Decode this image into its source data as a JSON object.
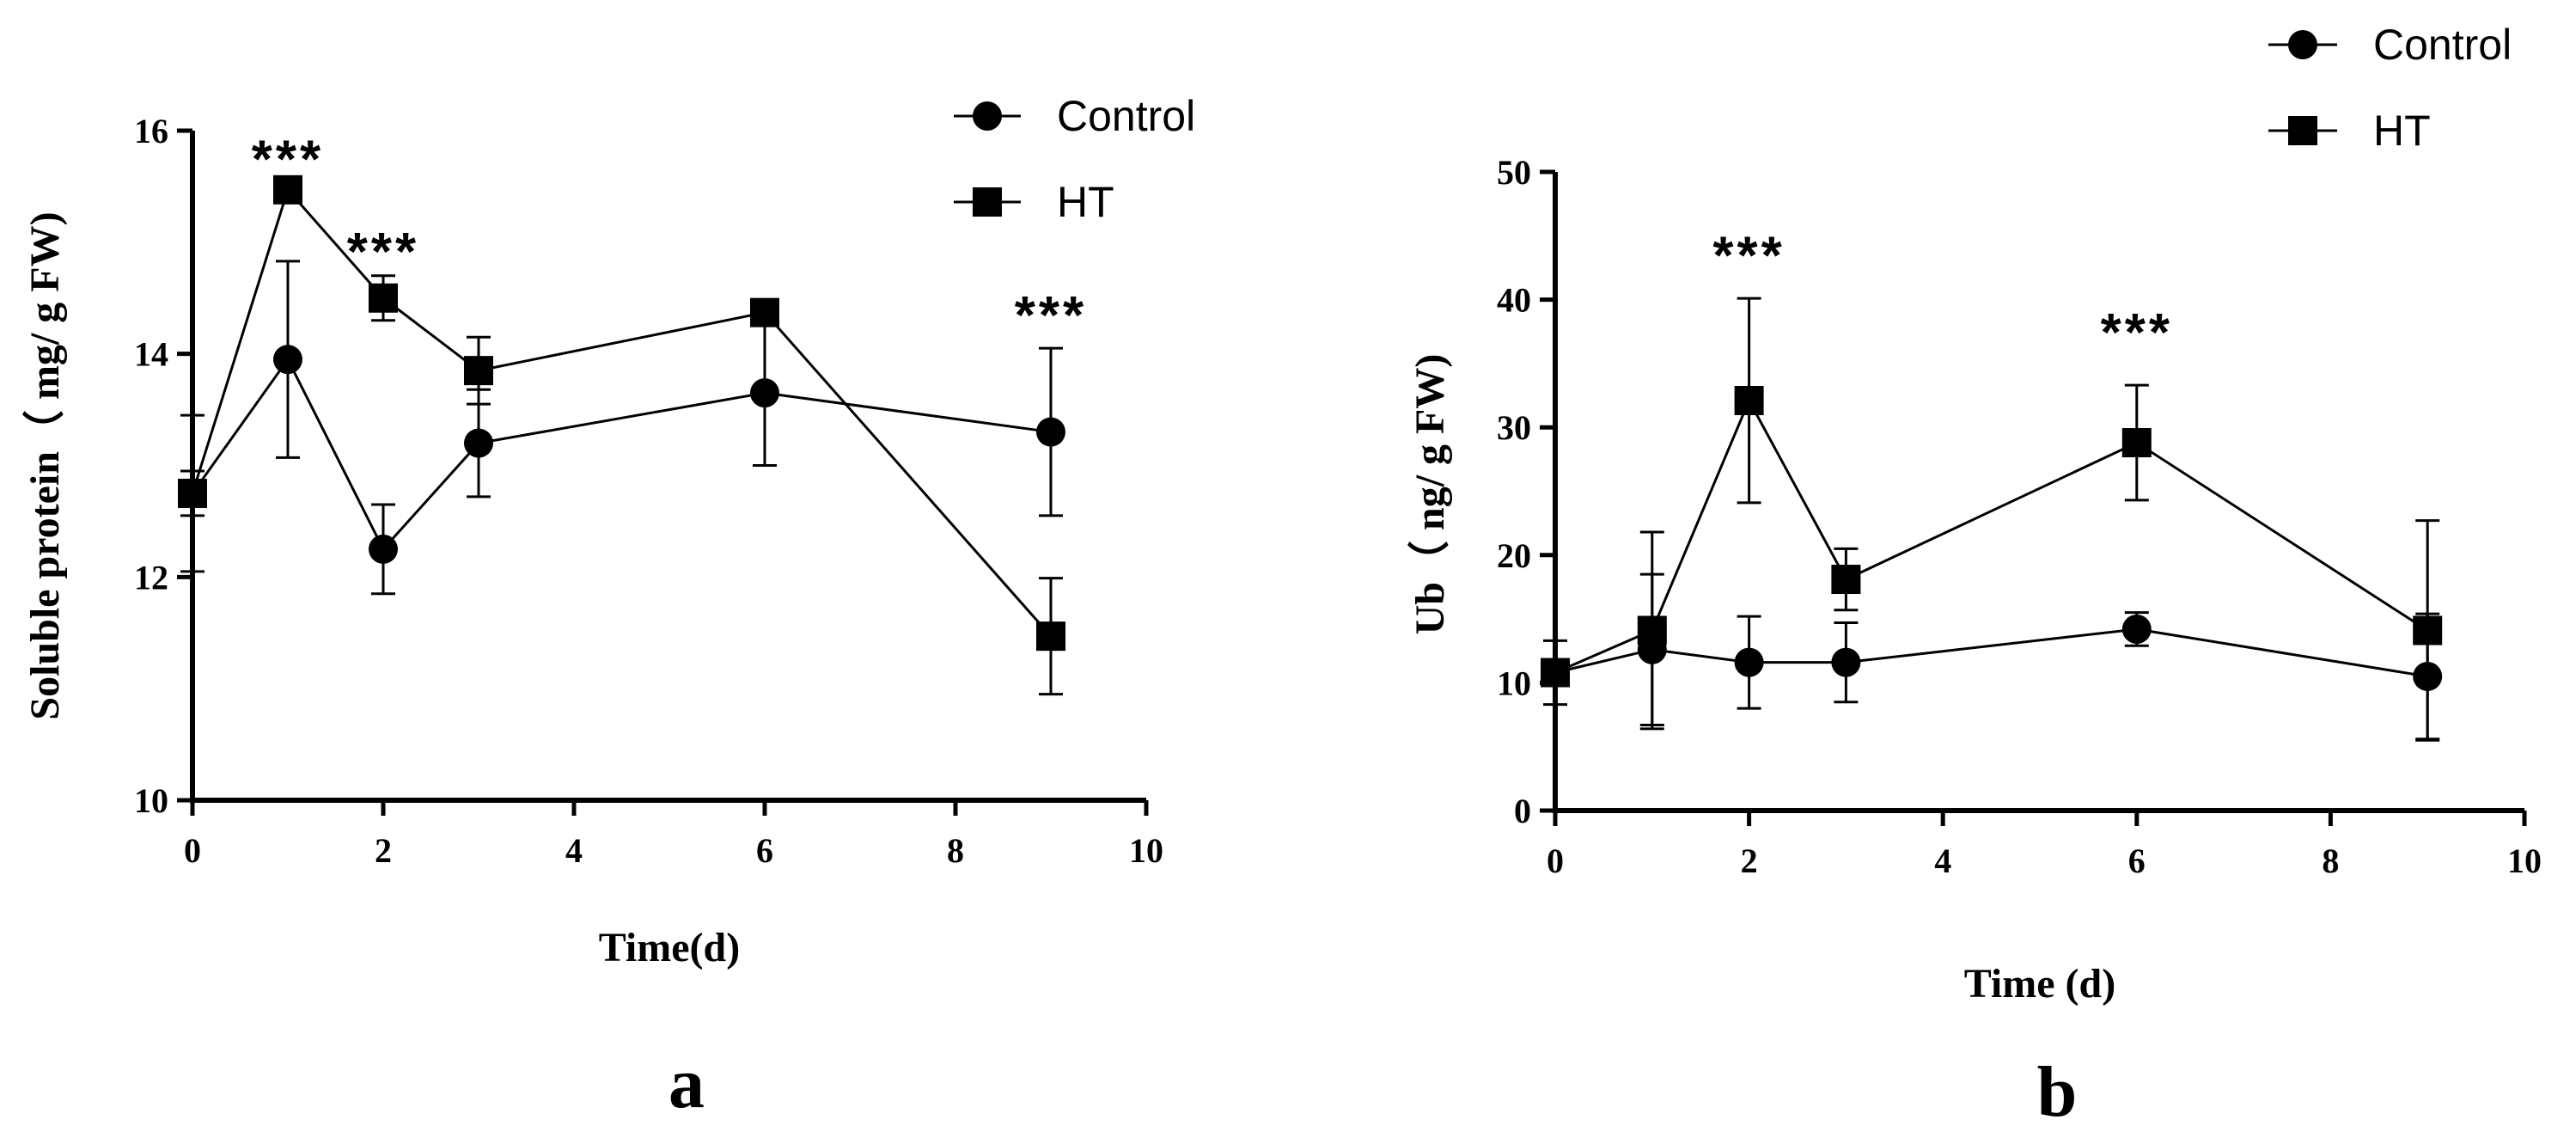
{
  "chart_data": [
    {
      "type": "line",
      "panel_label": "a",
      "xlabel": "Time(d)",
      "ylabel": "Soluble protein（ mg/ g FW)",
      "xlim": [
        0,
        10
      ],
      "ylim": [
        10,
        16
      ],
      "xticks": [
        0,
        2,
        4,
        6,
        8,
        10
      ],
      "yticks": [
        10,
        12,
        14,
        16
      ],
      "grid": false,
      "legend_position": "top-right",
      "series": [
        {
          "name": "Control",
          "marker": "circle",
          "x": [
            0,
            1,
            2,
            3,
            6,
            9
          ],
          "y": [
            12.75,
            13.95,
            12.25,
            13.2,
            13.65,
            13.3
          ],
          "err": [
            0.7,
            0.88,
            0.4,
            0.48,
            0.65,
            0.75
          ]
        },
        {
          "name": "HT",
          "marker": "square",
          "x": [
            0,
            1,
            2,
            3,
            6,
            9
          ],
          "y": [
            12.75,
            15.47,
            14.5,
            13.85,
            14.37,
            11.47
          ],
          "err": [
            0.2,
            0.1,
            0.2,
            0.3,
            0.05,
            0.52
          ]
        }
      ],
      "annotations": [
        {
          "text": "***",
          "x": 1,
          "y": 15.75
        },
        {
          "text": "***",
          "x": 2,
          "y": 14.92
        },
        {
          "text": "***",
          "x": 9,
          "y": 14.35
        }
      ]
    },
    {
      "type": "line",
      "panel_label": "b",
      "xlabel": "Time (d)",
      "ylabel": "Ub（ ng/ g FW)",
      "xlim": [
        0,
        10
      ],
      "ylim": [
        0,
        50
      ],
      "xticks": [
        0,
        2,
        4,
        6,
        8,
        10
      ],
      "yticks": [
        0,
        10,
        20,
        30,
        40,
        50
      ],
      "grid": false,
      "legend_position": "top-right",
      "series": [
        {
          "name": "Control",
          "marker": "circle",
          "x": [
            0,
            1,
            2,
            3,
            6,
            9
          ],
          "y": [
            10.8,
            12.6,
            11.6,
            11.6,
            14.2,
            10.5
          ],
          "err": [
            2.5,
            5.9,
            3.6,
            3.1,
            1.3,
            4.9
          ]
        },
        {
          "name": "HT",
          "marker": "square",
          "x": [
            0,
            1,
            2,
            3,
            6,
            9
          ],
          "y": [
            10.8,
            14.1,
            32.1,
            18.1,
            28.8,
            14.1
          ],
          "err": [
            1.0,
            7.7,
            8.0,
            2.4,
            4.5,
            8.6
          ]
        }
      ],
      "annotations": [
        {
          "text": "***",
          "x": 2,
          "y": 43.5
        },
        {
          "text": "***",
          "x": 6,
          "y": 37.5
        }
      ]
    }
  ]
}
